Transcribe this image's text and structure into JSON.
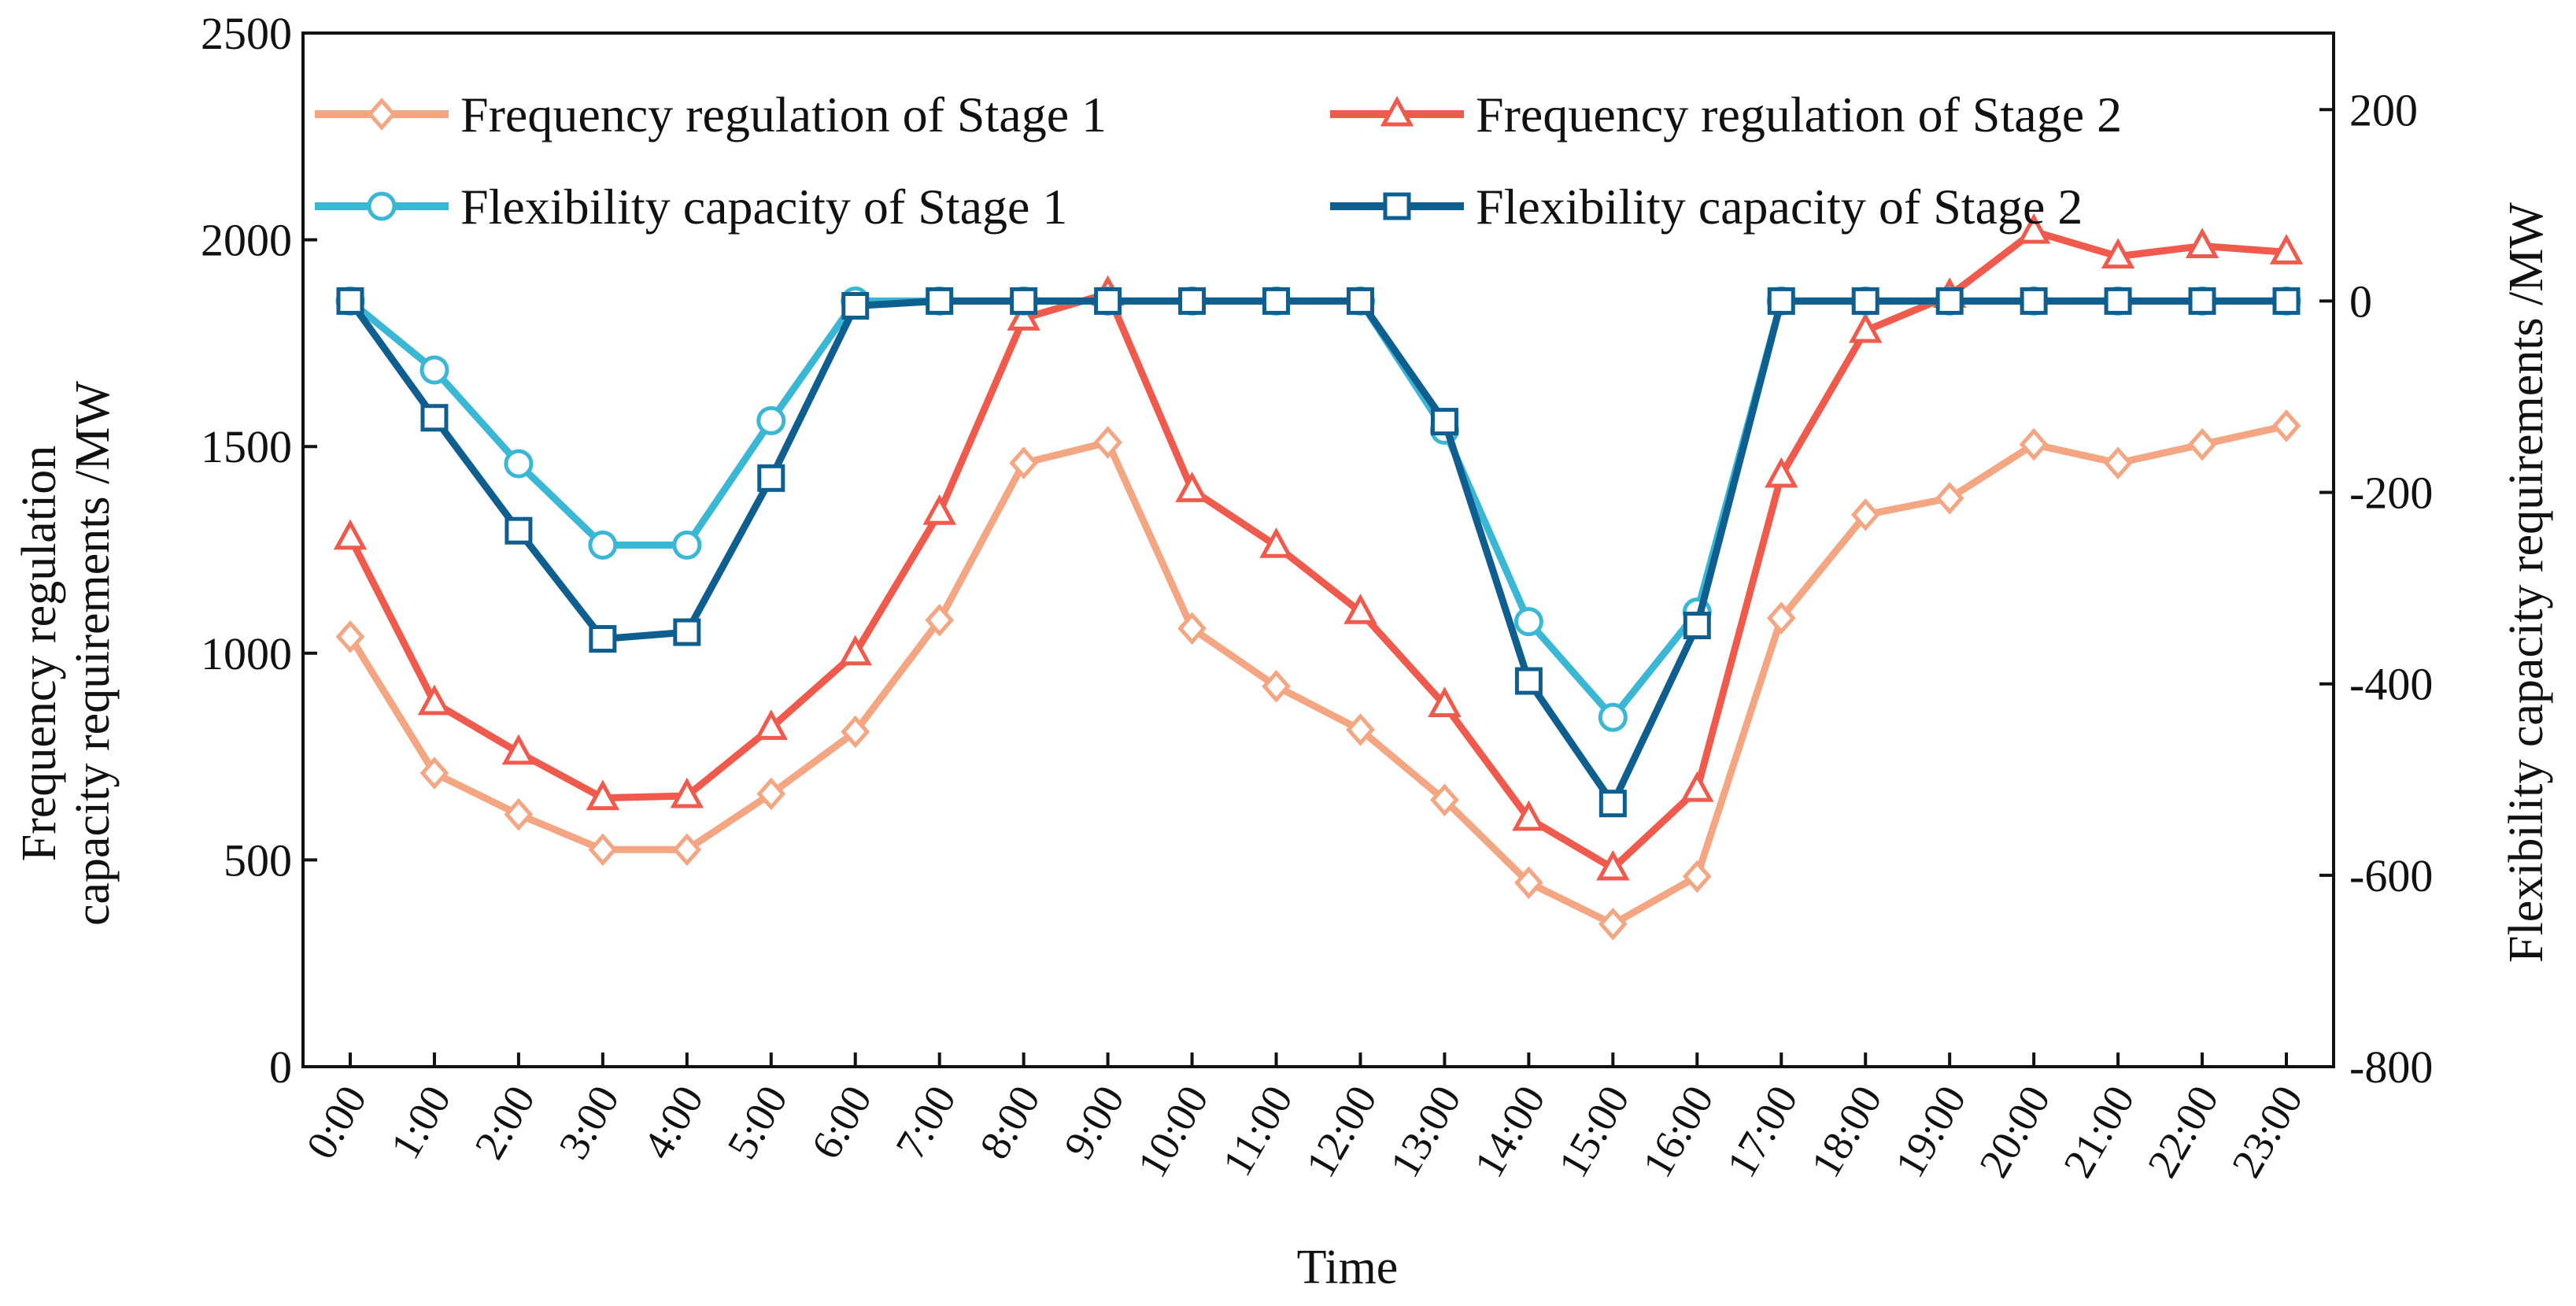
{
  "chart_data": {
    "type": "line",
    "categories": [
      "0:00",
      "1:00",
      "2:00",
      "3:00",
      "4:00",
      "5:00",
      "6:00",
      "7:00",
      "8:00",
      "9:00",
      "10:00",
      "11:00",
      "12:00",
      "13:00",
      "14:00",
      "15:00",
      "16:00",
      "17:00",
      "18:00",
      "19:00",
      "20:00",
      "21:00",
      "22:00",
      "23:00"
    ],
    "xlabel": "Time",
    "ylabel_left": [
      "Frequency regulation",
      "capacity requirements /MW"
    ],
    "ylabel_right": "Flexibility capacity requirements /MW",
    "ylim_left": [
      0,
      2500
    ],
    "yticks_left": [
      0,
      500,
      1000,
      1500,
      2000,
      2500
    ],
    "ylim_right": [
      -800,
      280
    ],
    "yticks_right": [
      -800,
      -600,
      -400,
      -200,
      0,
      200
    ],
    "legend_position": "top",
    "series": [
      {
        "name": "Frequency regulation of Stage 1",
        "axis": "left",
        "marker": "diamond",
        "color": "#F4A582",
        "values": [
          1040,
          710,
          610,
          525,
          525,
          660,
          810,
          1080,
          1460,
          1510,
          1060,
          920,
          815,
          645,
          445,
          345,
          460,
          1085,
          1335,
          1375,
          1505,
          1460,
          1505,
          1550
        ]
      },
      {
        "name": "Frequency regulation of Stage 2",
        "axis": "left",
        "marker": "triangle",
        "color": "#EF5A4C",
        "values": [
          1280,
          880,
          760,
          650,
          655,
          820,
          1000,
          1340,
          1810,
          1870,
          1395,
          1260,
          1100,
          875,
          600,
          480,
          670,
          1430,
          1780,
          1865,
          2020,
          1960,
          1985,
          1970
        ]
      },
      {
        "name": "Flexibility capacity of Stage 1",
        "axis": "right",
        "marker": "circle",
        "color": "#3BB7D6",
        "values": [
          0,
          -72,
          -170,
          -255,
          -255,
          -125,
          0,
          0,
          0,
          0,
          0,
          0,
          0,
          -135,
          -335,
          -435,
          -325,
          0,
          0,
          0,
          0,
          0,
          0,
          0
        ]
      },
      {
        "name": "Flexibility capacity of Stage 2",
        "axis": "right",
        "marker": "square",
        "color": "#0E5F8F",
        "values": [
          0,
          -122,
          -240,
          -353,
          -346,
          -185,
          -5,
          0,
          0,
          0,
          0,
          0,
          0,
          -126,
          -397,
          -525,
          -339,
          0,
          0,
          0,
          0,
          0,
          0,
          0
        ]
      }
    ]
  }
}
